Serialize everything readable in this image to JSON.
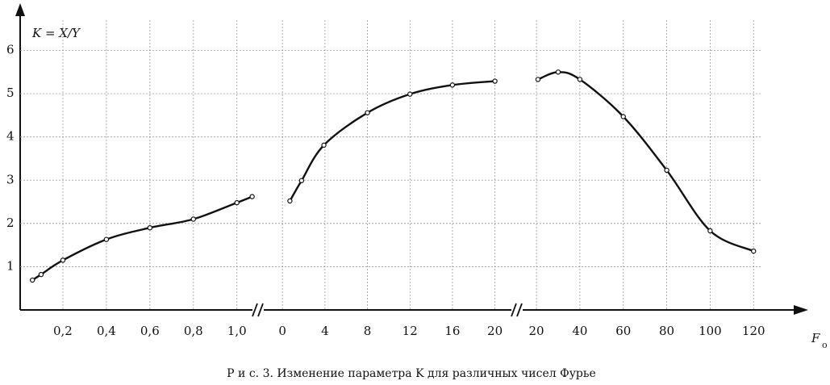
{
  "caption": "Р и с. 3. Изменение параметра K для различных чисел Фурье",
  "y_label": "K = X/Y",
  "x_label": "F",
  "x_label_sub": "o",
  "chart_data": [
    {
      "type": "line",
      "ylim": [
        0,
        6.7
      ],
      "yticks": [
        1,
        2,
        3,
        4,
        5,
        6
      ],
      "grid": true,
      "color": "#111",
      "xlim": [
        0,
        1.09
      ],
      "xticks": [
        {
          "value": 0.2,
          "label": "0,2"
        },
        {
          "value": 0.4,
          "label": "0,4"
        },
        {
          "value": 0.6,
          "label": "0,6"
        },
        {
          "value": 0.8,
          "label": "0,8"
        },
        {
          "value": 1.0,
          "label": "1,0"
        }
      ],
      "x": [
        0.06,
        0.1,
        0.2,
        0.4,
        0.6,
        0.8,
        1.0,
        1.07
      ],
      "values": [
        0.69,
        0.82,
        1.15,
        1.63,
        1.9,
        2.1,
        2.48,
        2.62
      ]
    },
    {
      "type": "line",
      "ylim": [
        0,
        6.7
      ],
      "grid": true,
      "color": "#111",
      "xlim": [
        -1,
        21.7
      ],
      "xticks": [
        0,
        4,
        8,
        12,
        16,
        20
      ],
      "x": [
        0.7,
        1.8,
        3.9,
        8,
        12,
        16,
        20
      ],
      "values": [
        2.52,
        2.99,
        3.81,
        4.56,
        4.99,
        5.2,
        5.29
      ]
    },
    {
      "type": "line",
      "ylim": [
        0,
        6.7
      ],
      "grid": true,
      "color": "#111",
      "xlim": [
        14.4,
        124
      ],
      "xticks": [
        20,
        40,
        60,
        80,
        100,
        120
      ],
      "x": [
        20.7,
        30,
        40,
        60,
        80,
        100,
        120
      ],
      "values": [
        5.33,
        5.5,
        5.33,
        4.47,
        3.23,
        1.83,
        1.36
      ]
    }
  ]
}
